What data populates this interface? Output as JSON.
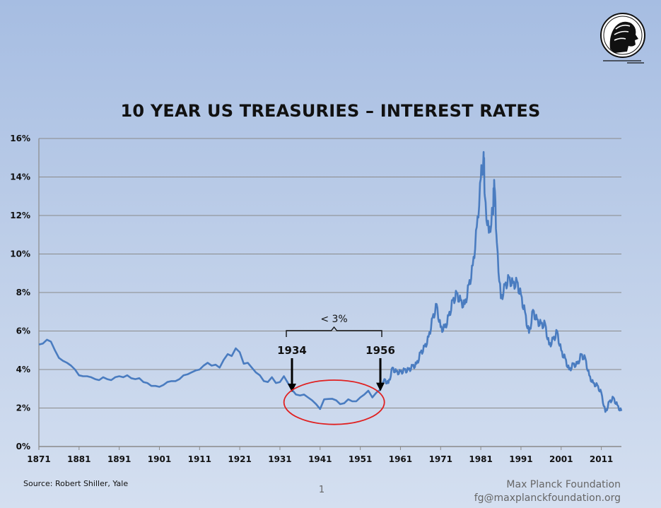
{
  "title": "10 YEAR US TREASURIES – INTEREST RATES",
  "source": "Source: Robert Shiller, Yale",
  "page_number": "1",
  "organization": "Max Planck Foundation",
  "email": "fg@maxplanckfoundation.org",
  "logo_icon": "minerva-head-icon",
  "colors": {
    "line": "#4a7cc0",
    "ellipse": "#e02020",
    "grid": "#8a8a8a",
    "arrow": "#000000"
  },
  "chart_data": {
    "type": "line",
    "title": "10 YEAR US TREASURIES – INTEREST RATES",
    "xlabel": "",
    "ylabel": "",
    "xlim": [
      1871,
      2016
    ],
    "ylim": [
      0,
      16
    ],
    "x_ticks": [
      1871,
      1881,
      1891,
      1901,
      1911,
      1921,
      1931,
      1941,
      1951,
      1961,
      1971,
      1981,
      1991,
      2001,
      2011
    ],
    "y_ticks": [
      0,
      2,
      4,
      6,
      8,
      10,
      12,
      14,
      16
    ],
    "y_tick_format": "percent",
    "grid": "horizontal",
    "legend": "none",
    "series": [
      {
        "points": [
          [
            1871,
            5.3
          ],
          [
            1872,
            5.35
          ],
          [
            1873,
            5.55
          ],
          [
            1874,
            5.45
          ],
          [
            1875,
            5.0
          ],
          [
            1876,
            4.6
          ],
          [
            1877,
            4.45
          ],
          [
            1878,
            4.35
          ],
          [
            1879,
            4.2
          ],
          [
            1880,
            4.0
          ],
          [
            1881,
            3.7
          ],
          [
            1882,
            3.65
          ],
          [
            1883,
            3.65
          ],
          [
            1884,
            3.6
          ],
          [
            1885,
            3.5
          ],
          [
            1886,
            3.45
          ],
          [
            1887,
            3.6
          ],
          [
            1888,
            3.5
          ],
          [
            1889,
            3.45
          ],
          [
            1890,
            3.6
          ],
          [
            1891,
            3.65
          ],
          [
            1892,
            3.6
          ],
          [
            1893,
            3.7
          ],
          [
            1894,
            3.55
          ],
          [
            1895,
            3.5
          ],
          [
            1896,
            3.55
          ],
          [
            1897,
            3.35
          ],
          [
            1898,
            3.3
          ],
          [
            1899,
            3.15
          ],
          [
            1900,
            3.15
          ],
          [
            1901,
            3.1
          ],
          [
            1902,
            3.2
          ],
          [
            1903,
            3.35
          ],
          [
            1904,
            3.4
          ],
          [
            1905,
            3.4
          ],
          [
            1906,
            3.5
          ],
          [
            1907,
            3.7
          ],
          [
            1908,
            3.75
          ],
          [
            1909,
            3.85
          ],
          [
            1910,
            3.95
          ],
          [
            1911,
            4.0
          ],
          [
            1912,
            4.2
          ],
          [
            1913,
            4.35
          ],
          [
            1914,
            4.2
          ],
          [
            1915,
            4.25
          ],
          [
            1916,
            4.1
          ],
          [
            1917,
            4.5
          ],
          [
            1918,
            4.8
          ],
          [
            1919,
            4.7
          ],
          [
            1920,
            5.1
          ],
          [
            1921,
            4.9
          ],
          [
            1922,
            4.3
          ],
          [
            1923,
            4.35
          ],
          [
            1924,
            4.1
          ],
          [
            1925,
            3.85
          ],
          [
            1926,
            3.7
          ],
          [
            1927,
            3.4
          ],
          [
            1928,
            3.35
          ],
          [
            1929,
            3.6
          ],
          [
            1930,
            3.3
          ],
          [
            1931,
            3.35
          ],
          [
            1932,
            3.65
          ],
          [
            1933,
            3.3
          ],
          [
            1934,
            2.95
          ],
          [
            1935,
            2.7
          ],
          [
            1936,
            2.65
          ],
          [
            1937,
            2.7
          ],
          [
            1938,
            2.55
          ],
          [
            1939,
            2.4
          ],
          [
            1940,
            2.2
          ],
          [
            1941,
            1.95
          ],
          [
            1942,
            2.45
          ],
          [
            1943,
            2.47
          ],
          [
            1944,
            2.48
          ],
          [
            1945,
            2.4
          ],
          [
            1946,
            2.2
          ],
          [
            1947,
            2.25
          ],
          [
            1948,
            2.45
          ],
          [
            1949,
            2.35
          ],
          [
            1950,
            2.35
          ],
          [
            1951,
            2.55
          ],
          [
            1952,
            2.7
          ],
          [
            1953,
            2.9
          ],
          [
            1954,
            2.55
          ],
          [
            1955,
            2.8
          ],
          [
            1956,
            2.95
          ],
          [
            1957,
            3.5
          ],
          [
            1958,
            3.3
          ],
          [
            1959,
            4.1
          ],
          [
            1960,
            3.9
          ],
          [
            1961,
            3.9
          ],
          [
            1962,
            4.0
          ],
          [
            1963,
            4.0
          ],
          [
            1964,
            4.2
          ],
          [
            1965,
            4.3
          ],
          [
            1966,
            4.9
          ],
          [
            1967,
            5.2
          ],
          [
            1968,
            5.7
          ],
          [
            1969,
            6.7
          ],
          [
            1970,
            7.4
          ],
          [
            1971,
            6.2
          ],
          [
            1972,
            6.2
          ],
          [
            1973,
            6.8
          ],
          [
            1974,
            7.6
          ],
          [
            1975,
            8.0
          ],
          [
            1976,
            7.6
          ],
          [
            1977,
            7.4
          ],
          [
            1978,
            8.4
          ],
          [
            1979,
            9.4
          ],
          [
            1980,
            11.4
          ],
          [
            1981,
            13.9
          ],
          [
            1981.7,
            15.3
          ],
          [
            1982,
            13.0
          ],
          [
            1983,
            11.1
          ],
          [
            1984,
            12.4
          ],
          [
            1984.4,
            13.5
          ],
          [
            1985,
            10.6
          ],
          [
            1986,
            7.7
          ],
          [
            1987,
            8.4
          ],
          [
            1988,
            8.8
          ],
          [
            1989,
            8.5
          ],
          [
            1990,
            8.6
          ],
          [
            1991,
            7.9
          ],
          [
            1992,
            7.0
          ],
          [
            1993,
            5.9
          ],
          [
            1994,
            7.1
          ],
          [
            1995,
            6.6
          ],
          [
            1996,
            6.4
          ],
          [
            1997,
            6.4
          ],
          [
            1998,
            5.3
          ],
          [
            1999,
            5.6
          ],
          [
            2000,
            6.0
          ],
          [
            2001,
            5.0
          ],
          [
            2002,
            4.6
          ],
          [
            2003,
            4.0
          ],
          [
            2004,
            4.3
          ],
          [
            2005,
            4.3
          ],
          [
            2006,
            4.8
          ],
          [
            2007,
            4.6
          ],
          [
            2008,
            3.7
          ],
          [
            2009,
            3.3
          ],
          [
            2010,
            3.2
          ],
          [
            2011,
            2.8
          ],
          [
            2012,
            1.8
          ],
          [
            2013,
            2.35
          ],
          [
            2014,
            2.55
          ],
          [
            2015,
            2.15
          ],
          [
            2016,
            1.85
          ]
        ]
      }
    ],
    "annotations": [
      {
        "type": "arrow",
        "label": "1934",
        "x": 1934,
        "y": 2.9
      },
      {
        "type": "arrow",
        "label": "1956",
        "x": 1956,
        "y": 2.95
      },
      {
        "type": "bracket",
        "label": "< 3%",
        "x_start": 1934,
        "x_end": 1956
      },
      {
        "type": "ellipse",
        "x_center": 1944.5,
        "y_center": 2.3,
        "x_radius": 12.5,
        "y_radius": 1.15
      }
    ]
  }
}
